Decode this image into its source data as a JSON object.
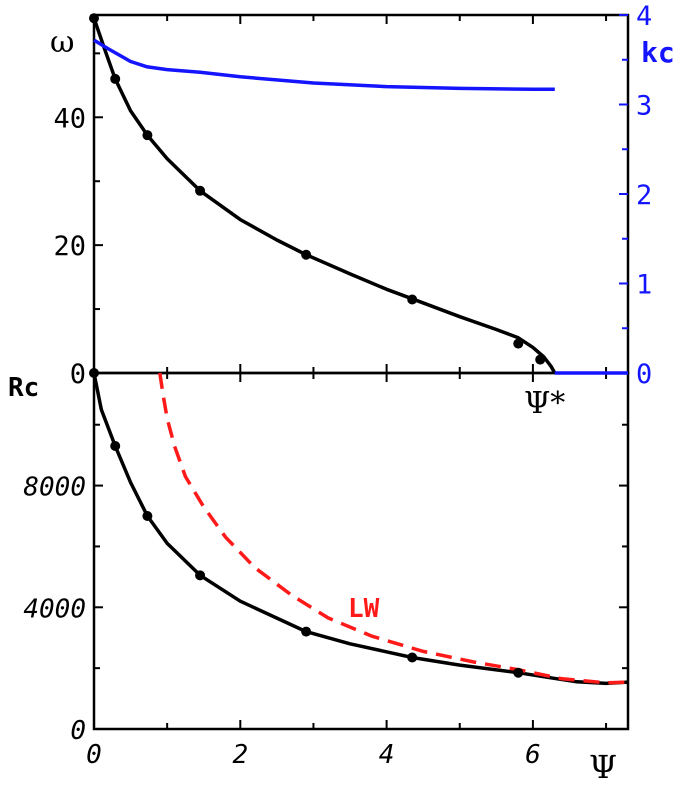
{
  "chart_data": [
    {
      "type": "line",
      "panel": "top",
      "xlim": [
        0,
        7.3
      ],
      "ylim": [
        0,
        56
      ],
      "y2lim": [
        0,
        4
      ],
      "xticks": [
        0,
        2,
        4,
        6
      ],
      "yticks": [
        0,
        20,
        40
      ],
      "ytick_labels": [
        "0",
        "20",
        "40"
      ],
      "y2ticks": [
        0,
        1,
        2,
        3,
        4
      ],
      "y2tick_labels": [
        "0",
        "1",
        "2",
        "3",
        "4"
      ],
      "ylabel": "ω",
      "y2label": "kc",
      "annotation": "Ψ*",
      "colors": {
        "omega": "#000000",
        "kc": "#1414ff"
      },
      "series": [
        {
          "axis": "left",
          "kind": "markers",
          "x": [
            0.0,
            0.29,
            0.73,
            1.45,
            2.9,
            4.35,
            5.8,
            6.1
          ],
          "y": [
            55.5,
            46.0,
            37.2,
            28.5,
            18.5,
            11.5,
            4.6,
            2.1
          ]
        },
        {
          "axis": "left",
          "kind": "curve",
          "x": [
            0.0,
            0.15,
            0.29,
            0.5,
            0.73,
            1.0,
            1.45,
            2.0,
            2.5,
            2.9,
            3.5,
            4.0,
            4.35,
            5.0,
            5.5,
            5.8,
            6.0,
            6.15,
            6.25,
            6.3
          ],
          "y": [
            55.5,
            50.5,
            46.0,
            41.0,
            37.2,
            33.5,
            28.5,
            24.0,
            20.8,
            18.5,
            15.5,
            13.1,
            11.6,
            8.8,
            6.8,
            5.5,
            4.0,
            2.5,
            1.0,
            0.0
          ]
        },
        {
          "axis": "right",
          "kind": "curve",
          "x": [
            0.0,
            0.2,
            0.5,
            0.73,
            1.0,
            1.45,
            2.0,
            3.0,
            4.0,
            5.0,
            6.0,
            6.3
          ],
          "y": [
            3.72,
            3.62,
            3.48,
            3.42,
            3.39,
            3.36,
            3.31,
            3.24,
            3.2,
            3.18,
            3.17,
            3.17
          ]
        },
        {
          "axis": "right",
          "kind": "curve",
          "x": [
            6.3,
            7.3
          ],
          "y": [
            0.0,
            0.0
          ]
        }
      ]
    },
    {
      "type": "line",
      "panel": "bottom",
      "xlim": [
        0,
        7.3
      ],
      "ylim": [
        0,
        11700
      ],
      "xticks": [
        0,
        2,
        4,
        6
      ],
      "xtick_labels": [
        "0",
        "2",
        "4",
        "6"
      ],
      "yticks": [
        0,
        4000,
        8000
      ],
      "ytick_labels": [
        "0",
        "4000",
        "8000"
      ],
      "ylabel": "Rc",
      "xlabel": "Ψ",
      "colors": {
        "rc": "#000000",
        "lw": "#ff1a1a"
      },
      "series": [
        {
          "kind": "markers",
          "x": [
            0.0,
            0.29,
            0.73,
            1.45,
            2.9,
            4.35,
            5.8
          ],
          "y": [
            11700,
            9300,
            7000,
            5050,
            3200,
            2350,
            1850
          ]
        },
        {
          "kind": "curve",
          "x": [
            0.0,
            0.1,
            0.29,
            0.5,
            0.73,
            1.0,
            1.45,
            2.0,
            2.9,
            3.5,
            4.35,
            5.0,
            5.8,
            6.2,
            6.6,
            7.0,
            7.3
          ],
          "y": [
            11700,
            10500,
            9300,
            8100,
            7000,
            6100,
            5050,
            4200,
            3200,
            2800,
            2350,
            2100,
            1850,
            1700,
            1550,
            1500,
            1540
          ]
        },
        {
          "name": "LW",
          "kind": "dashed",
          "x": [
            0.9,
            0.95,
            1.0,
            1.1,
            1.25,
            1.5,
            1.8,
            2.2,
            2.7,
            3.2,
            3.8,
            4.5,
            5.2,
            5.8,
            6.4,
            7.0,
            7.3
          ],
          "y": [
            11700,
            10900,
            10200,
            9300,
            8300,
            7300,
            6300,
            5300,
            4400,
            3650,
            3050,
            2550,
            2200,
            1950,
            1650,
            1520,
            1540
          ]
        }
      ]
    }
  ]
}
